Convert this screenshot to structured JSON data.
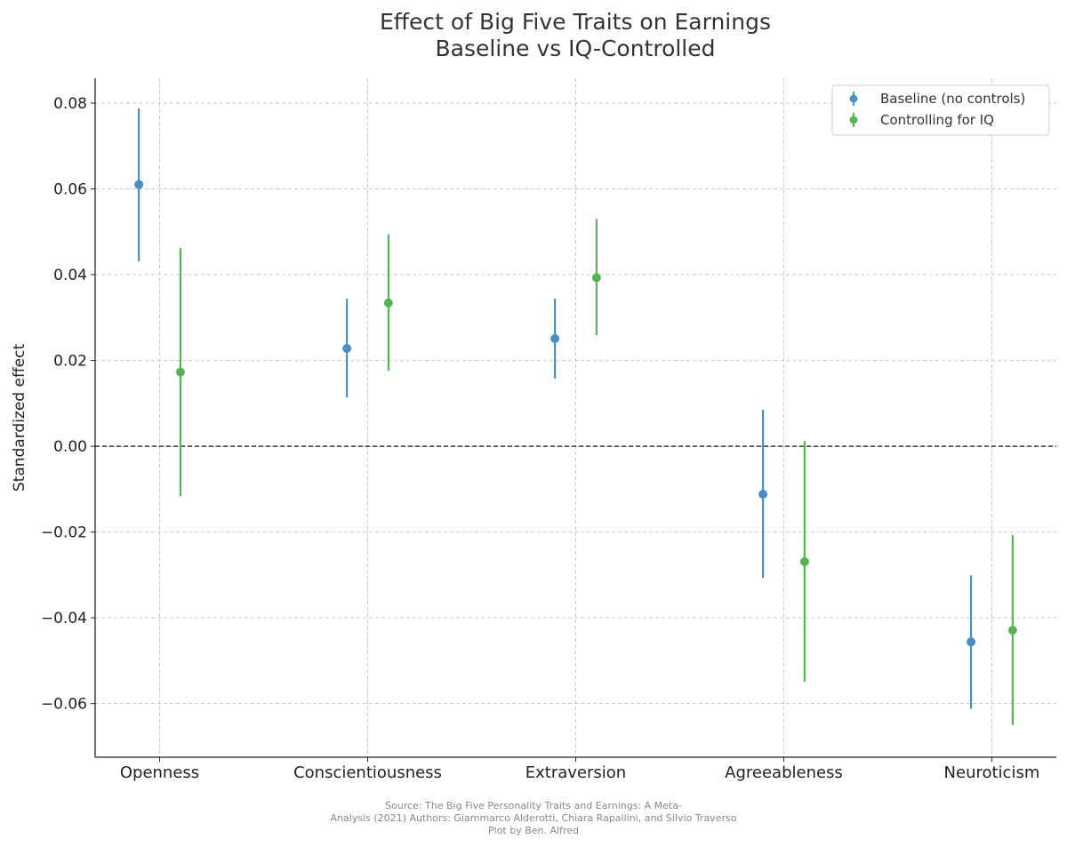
{
  "chart_data": {
    "type": "errorbar",
    "title": "Effect of Big Five Traits on Earnings",
    "subtitle": "Baseline vs IQ-Controlled",
    "xlabel": "",
    "ylabel": "Standardized effect",
    "categories": [
      "Openness",
      "Conscientiousness",
      "Extraversion",
      "Agreeableness",
      "Neuroticism"
    ],
    "ylim": [
      -0.0725,
      0.0858
    ],
    "yticks": [
      -0.06,
      -0.04,
      -0.02,
      0.0,
      0.02,
      0.04,
      0.06,
      0.08
    ],
    "ytick_labels": [
      "−0.06",
      "−0.04",
      "−0.02",
      "0.00",
      "0.02",
      "0.04",
      "0.06",
      "0.08"
    ],
    "grid": true,
    "reference_line": 0,
    "legend_position": "top-right",
    "series": [
      {
        "name": "Baseline (no controls)",
        "color": "#4a8ec4",
        "values": [
          0.061,
          0.0228,
          0.0251,
          -0.0112,
          -0.0456
        ],
        "lower": [
          0.0431,
          0.0114,
          0.0158,
          -0.0307,
          -0.0612
        ],
        "upper": [
          0.0788,
          0.0344,
          0.0344,
          0.0085,
          -0.0301
        ]
      },
      {
        "name": "Controlling for IQ",
        "color": "#55b555",
        "values": [
          0.0173,
          0.0334,
          0.0393,
          -0.0269,
          -0.0429
        ],
        "lower": [
          -0.0116,
          0.0176,
          0.0259,
          -0.0549,
          -0.065
        ],
        "upper": [
          0.0462,
          0.0494,
          0.053,
          0.0012,
          -0.0207
        ]
      }
    ]
  },
  "footer": {
    "line1": "Source: The Big Five Personality Traits and Earnings: A Meta-",
    "line2": "Analysis (2021)    Authors: Giammarco Alderotti, Chiara Rapallini, and Silvio Traverso",
    "line3": "Plot by Ben. Alfred"
  }
}
